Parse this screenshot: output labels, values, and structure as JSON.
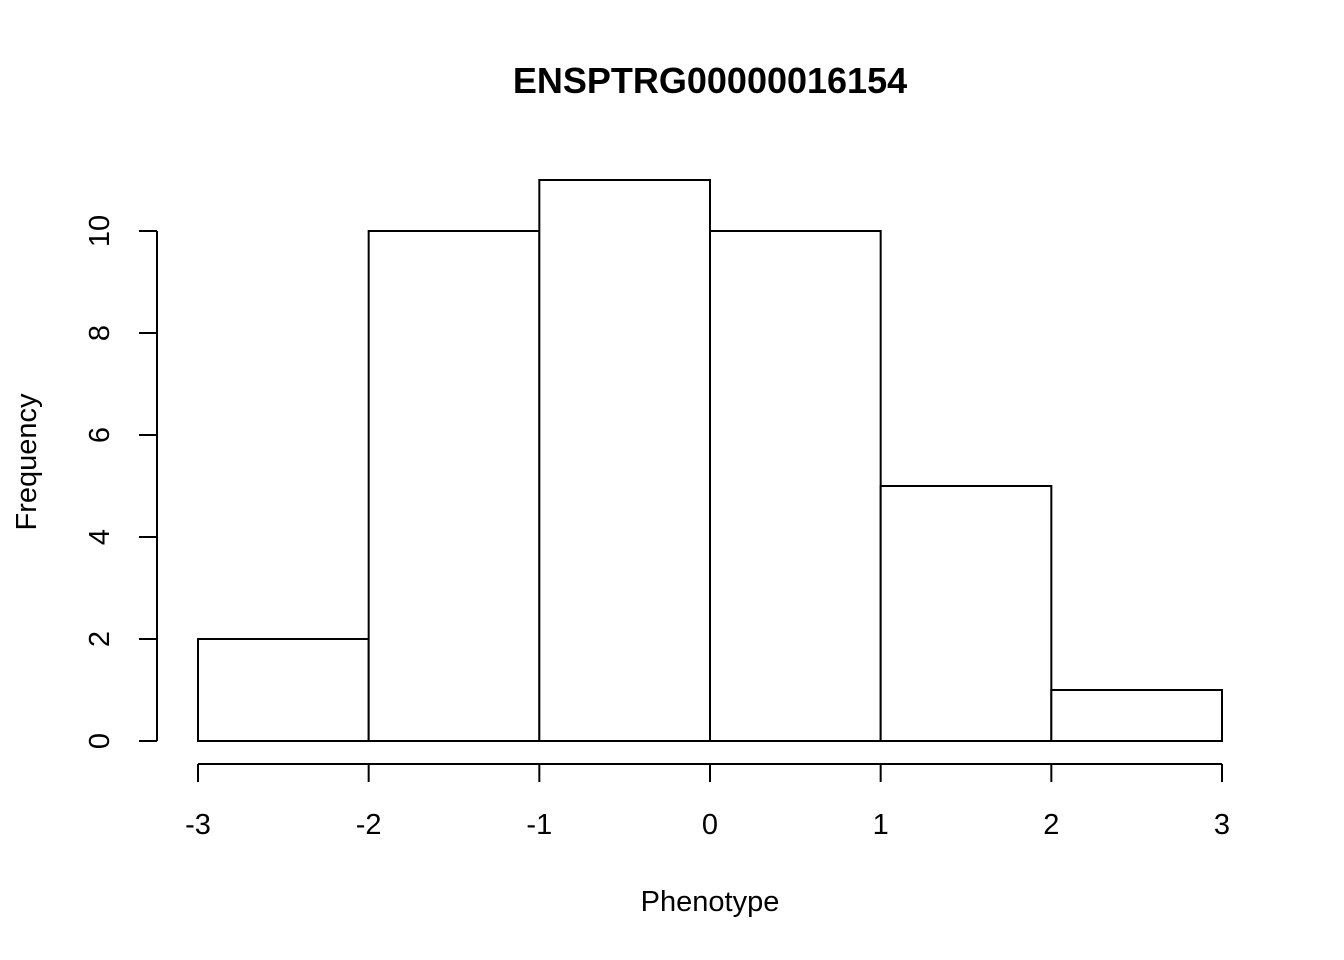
{
  "chart_data": {
    "type": "bar",
    "title": "ENSPTRG00000016154",
    "xlabel": "Phenotype",
    "ylabel": "Frequency",
    "bins": [
      {
        "x0": -3,
        "x1": -2,
        "count": 2
      },
      {
        "x0": -2,
        "x1": -1,
        "count": 10
      },
      {
        "x0": -1,
        "x1": 0,
        "count": 11
      },
      {
        "x0": 0,
        "x1": 1,
        "count": 10
      },
      {
        "x0": 1,
        "x1": 2,
        "count": 5
      },
      {
        "x0": 2,
        "x1": 3,
        "count": 1
      }
    ],
    "xticks": [
      "-3",
      "-2",
      "-1",
      "0",
      "1",
      "2",
      "3"
    ],
    "yticks": [
      "0",
      "2",
      "4",
      "6",
      "8",
      "10"
    ],
    "xlim": [
      -3,
      3
    ],
    "ylim": [
      0,
      10
    ],
    "grid": false,
    "legend": "none",
    "colors": {
      "bar_fill": "#ffffff",
      "bar_stroke": "#000000"
    }
  }
}
